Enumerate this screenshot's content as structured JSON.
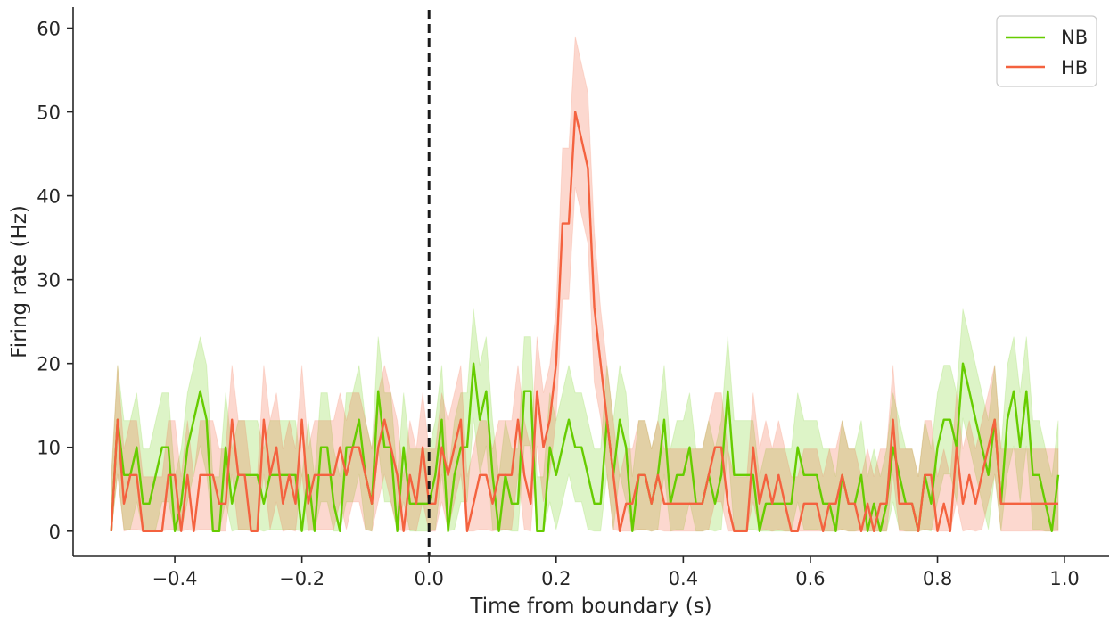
{
  "chart_data": {
    "type": "line",
    "title": "",
    "xlabel": "Time from boundary (s)",
    "ylabel": "Firing rate (Hz)",
    "xlim": [
      -0.56,
      1.07
    ],
    "ylim": [
      -3,
      62.5
    ],
    "x_ticks": [
      -0.4,
      -0.2,
      0.0,
      0.2,
      0.4,
      0.6,
      0.8,
      1.0
    ],
    "x_tick_labels": [
      "−0.4",
      "−0.2",
      "0.0",
      "0.2",
      "0.4",
      "0.6",
      "0.8",
      "1.0"
    ],
    "y_ticks": [
      0,
      10,
      20,
      30,
      40,
      50,
      60
    ],
    "y_tick_labels": [
      "0",
      "10",
      "20",
      "30",
      "40",
      "50",
      "60"
    ],
    "grid": false,
    "legend_position": "top-right",
    "reference_line": {
      "x": 0.0,
      "style": "dashed",
      "color": "#1a1a1a"
    },
    "series": [
      {
        "name": "NB",
        "color": "#66cc00",
        "band_opacity": 0.22,
        "knots": [
          [
            -0.5,
            0
          ],
          [
            -0.49,
            13.3
          ],
          [
            -0.48,
            6.7
          ],
          [
            -0.47,
            6.7
          ],
          [
            -0.46,
            10
          ],
          [
            -0.45,
            3.3
          ],
          [
            -0.44,
            3.3
          ],
          [
            -0.43,
            6.7
          ],
          [
            -0.42,
            10
          ],
          [
            -0.41,
            10
          ],
          [
            -0.4,
            0
          ],
          [
            -0.39,
            3.3
          ],
          [
            -0.38,
            10
          ],
          [
            -0.37,
            13.3
          ],
          [
            -0.36,
            16.7
          ],
          [
            -0.35,
            13.3
          ],
          [
            -0.34,
            0
          ],
          [
            -0.33,
            0
          ],
          [
            -0.32,
            10
          ],
          [
            -0.31,
            3.3
          ],
          [
            -0.3,
            6.7
          ],
          [
            -0.29,
            6.7
          ],
          [
            -0.28,
            6.7
          ],
          [
            -0.27,
            6.7
          ],
          [
            -0.26,
            3.3
          ],
          [
            -0.25,
            6.7
          ],
          [
            -0.24,
            6.7
          ],
          [
            -0.23,
            6.7
          ],
          [
            -0.22,
            6.7
          ],
          [
            -0.21,
            6.7
          ],
          [
            -0.2,
            0
          ],
          [
            -0.19,
            6.7
          ],
          [
            -0.18,
            0
          ],
          [
            -0.17,
            10
          ],
          [
            -0.16,
            10
          ],
          [
            -0.15,
            3.3
          ],
          [
            -0.14,
            0
          ],
          [
            -0.13,
            10
          ],
          [
            -0.12,
            10
          ],
          [
            -0.11,
            13.3
          ],
          [
            -0.1,
            6.7
          ],
          [
            -0.09,
            3.3
          ],
          [
            -0.08,
            16.7
          ],
          [
            -0.07,
            10
          ],
          [
            -0.06,
            10
          ],
          [
            -0.05,
            0
          ],
          [
            -0.04,
            10
          ],
          [
            -0.03,
            3.3
          ],
          [
            -0.02,
            3.3
          ],
          [
            -0.01,
            3.3
          ],
          [
            0.0,
            3.3
          ],
          [
            0.01,
            6.7
          ],
          [
            0.02,
            13.3
          ],
          [
            0.03,
            0
          ],
          [
            0.04,
            6.7
          ],
          [
            0.05,
            10
          ],
          [
            0.06,
            10
          ],
          [
            0.07,
            20
          ],
          [
            0.08,
            13.3
          ],
          [
            0.09,
            16.7
          ],
          [
            0.1,
            6.7
          ],
          [
            0.11,
            0
          ],
          [
            0.12,
            6.7
          ],
          [
            0.13,
            3.3
          ],
          [
            0.14,
            3.3
          ],
          [
            0.15,
            16.7
          ],
          [
            0.16,
            16.7
          ],
          [
            0.17,
            0
          ],
          [
            0.18,
            0
          ],
          [
            0.19,
            10
          ],
          [
            0.2,
            6.7
          ],
          [
            0.21,
            10
          ],
          [
            0.22,
            13.3
          ],
          [
            0.23,
            10
          ],
          [
            0.24,
            10
          ],
          [
            0.25,
            6.7
          ],
          [
            0.26,
            3.3
          ],
          [
            0.27,
            3.3
          ],
          [
            0.28,
            13.3
          ],
          [
            0.29,
            6.7
          ],
          [
            0.3,
            13.3
          ],
          [
            0.31,
            10
          ],
          [
            0.32,
            0
          ],
          [
            0.33,
            6.7
          ],
          [
            0.34,
            6.7
          ],
          [
            0.35,
            3.3
          ],
          [
            0.36,
            6.7
          ],
          [
            0.37,
            13.3
          ],
          [
            0.38,
            3.3
          ],
          [
            0.39,
            6.7
          ],
          [
            0.4,
            6.7
          ],
          [
            0.41,
            10
          ],
          [
            0.42,
            3.3
          ],
          [
            0.43,
            3.3
          ],
          [
            0.44,
            6.7
          ],
          [
            0.45,
            3.3
          ],
          [
            0.46,
            6.7
          ],
          [
            0.47,
            16.7
          ],
          [
            0.48,
            6.7
          ],
          [
            0.49,
            6.7
          ],
          [
            0.5,
            6.7
          ],
          [
            0.51,
            6.7
          ],
          [
            0.52,
            0
          ],
          [
            0.53,
            3.3
          ],
          [
            0.54,
            3.3
          ],
          [
            0.55,
            3.3
          ],
          [
            0.56,
            3.3
          ],
          [
            0.57,
            3.3
          ],
          [
            0.58,
            10
          ],
          [
            0.59,
            6.7
          ],
          [
            0.6,
            6.7
          ],
          [
            0.61,
            6.7
          ],
          [
            0.62,
            3.3
          ],
          [
            0.63,
            3.3
          ],
          [
            0.64,
            0
          ],
          [
            0.65,
            6.7
          ],
          [
            0.66,
            3.3
          ],
          [
            0.67,
            3.3
          ],
          [
            0.68,
            6.7
          ],
          [
            0.69,
            0
          ],
          [
            0.7,
            3.3
          ],
          [
            0.71,
            0
          ],
          [
            0.72,
            3.3
          ],
          [
            0.73,
            10
          ],
          [
            0.74,
            6.7
          ],
          [
            0.75,
            3.3
          ],
          [
            0.76,
            3.3
          ],
          [
            0.77,
            0
          ],
          [
            0.78,
            6.7
          ],
          [
            0.79,
            3.3
          ],
          [
            0.8,
            10
          ],
          [
            0.81,
            13.3
          ],
          [
            0.82,
            13.3
          ],
          [
            0.83,
            10
          ],
          [
            0.84,
            20
          ],
          [
            0.85,
            16.7
          ],
          [
            0.86,
            13.3
          ],
          [
            0.87,
            10
          ],
          [
            0.88,
            6.7
          ],
          [
            0.89,
            13.3
          ],
          [
            0.9,
            3.3
          ],
          [
            0.91,
            13.3
          ],
          [
            0.92,
            16.7
          ],
          [
            0.93,
            10
          ],
          [
            0.94,
            16.7
          ],
          [
            0.95,
            6.7
          ],
          [
            0.96,
            6.7
          ],
          [
            0.97,
            3.3
          ],
          [
            0.98,
            0
          ],
          [
            0.99,
            6.7
          ]
        ]
      },
      {
        "name": "HB",
        "color": "#f4623f",
        "band_opacity": 0.25,
        "knots": [
          [
            -0.5,
            0
          ],
          [
            -0.49,
            13.3
          ],
          [
            -0.48,
            3.3
          ],
          [
            -0.47,
            6.7
          ],
          [
            -0.46,
            6.7
          ],
          [
            -0.45,
            0
          ],
          [
            -0.44,
            0
          ],
          [
            -0.43,
            0
          ],
          [
            -0.42,
            0
          ],
          [
            -0.41,
            6.7
          ],
          [
            -0.4,
            6.7
          ],
          [
            -0.39,
            0
          ],
          [
            -0.38,
            6.7
          ],
          [
            -0.37,
            0
          ],
          [
            -0.36,
            6.7
          ],
          [
            -0.35,
            6.7
          ],
          [
            -0.34,
            6.7
          ],
          [
            -0.33,
            3.3
          ],
          [
            -0.32,
            3.3
          ],
          [
            -0.31,
            13.3
          ],
          [
            -0.3,
            6.7
          ],
          [
            -0.29,
            6.7
          ],
          [
            -0.28,
            0
          ],
          [
            -0.27,
            0
          ],
          [
            -0.26,
            13.3
          ],
          [
            -0.25,
            6.7
          ],
          [
            -0.24,
            10
          ],
          [
            -0.23,
            3.3
          ],
          [
            -0.22,
            6.7
          ],
          [
            -0.21,
            3.3
          ],
          [
            -0.2,
            13.3
          ],
          [
            -0.19,
            3.3
          ],
          [
            -0.18,
            6.7
          ],
          [
            -0.17,
            6.7
          ],
          [
            -0.16,
            6.7
          ],
          [
            -0.15,
            6.7
          ],
          [
            -0.14,
            10
          ],
          [
            -0.13,
            6.7
          ],
          [
            -0.12,
            10
          ],
          [
            -0.11,
            10
          ],
          [
            -0.1,
            6.7
          ],
          [
            -0.09,
            3.3
          ],
          [
            -0.08,
            10
          ],
          [
            -0.07,
            13.3
          ],
          [
            -0.06,
            10
          ],
          [
            -0.05,
            6.7
          ],
          [
            -0.04,
            0
          ],
          [
            -0.03,
            6.7
          ],
          [
            -0.02,
            3.3
          ],
          [
            -0.01,
            10
          ],
          [
            0.0,
            3.3
          ],
          [
            0.01,
            3.3
          ],
          [
            0.02,
            10
          ],
          [
            0.03,
            6.7
          ],
          [
            0.04,
            10
          ],
          [
            0.05,
            13.3
          ],
          [
            0.06,
            0
          ],
          [
            0.07,
            3.3
          ],
          [
            0.08,
            6.7
          ],
          [
            0.09,
            6.7
          ],
          [
            0.1,
            3.3
          ],
          [
            0.11,
            6.7
          ],
          [
            0.12,
            6.7
          ],
          [
            0.13,
            6.7
          ],
          [
            0.14,
            13.3
          ],
          [
            0.15,
            6.7
          ],
          [
            0.16,
            3.3
          ],
          [
            0.17,
            16.7
          ],
          [
            0.18,
            10
          ],
          [
            0.19,
            13.3
          ],
          [
            0.2,
            20
          ],
          [
            0.21,
            36.7
          ],
          [
            0.22,
            36.7
          ],
          [
            0.23,
            50
          ],
          [
            0.24,
            46.7
          ],
          [
            0.25,
            43.3
          ],
          [
            0.26,
            26.7
          ],
          [
            0.27,
            20
          ],
          [
            0.28,
            13.3
          ],
          [
            0.29,
            6.7
          ],
          [
            0.3,
            0
          ],
          [
            0.31,
            3.3
          ],
          [
            0.32,
            3.3
          ],
          [
            0.33,
            6.7
          ],
          [
            0.34,
            6.7
          ],
          [
            0.35,
            3.3
          ],
          [
            0.36,
            6.7
          ],
          [
            0.37,
            3.3
          ],
          [
            0.38,
            3.3
          ],
          [
            0.39,
            3.3
          ],
          [
            0.4,
            3.3
          ],
          [
            0.41,
            3.3
          ],
          [
            0.42,
            3.3
          ],
          [
            0.43,
            3.3
          ],
          [
            0.44,
            6.7
          ],
          [
            0.45,
            10
          ],
          [
            0.46,
            10
          ],
          [
            0.47,
            3.3
          ],
          [
            0.48,
            0
          ],
          [
            0.49,
            0
          ],
          [
            0.5,
            0
          ],
          [
            0.51,
            10
          ],
          [
            0.52,
            3.3
          ],
          [
            0.53,
            6.7
          ],
          [
            0.54,
            3.3
          ],
          [
            0.55,
            6.7
          ],
          [
            0.56,
            3.3
          ],
          [
            0.57,
            0
          ],
          [
            0.58,
            0
          ],
          [
            0.59,
            3.3
          ],
          [
            0.6,
            3.3
          ],
          [
            0.61,
            3.3
          ],
          [
            0.62,
            0
          ],
          [
            0.63,
            3.3
          ],
          [
            0.64,
            3.3
          ],
          [
            0.65,
            6.7
          ],
          [
            0.66,
            3.3
          ],
          [
            0.67,
            3.3
          ],
          [
            0.68,
            0
          ],
          [
            0.69,
            3.3
          ],
          [
            0.7,
            0
          ],
          [
            0.71,
            3.3
          ],
          [
            0.72,
            3.3
          ],
          [
            0.73,
            13.3
          ],
          [
            0.74,
            3.3
          ],
          [
            0.75,
            3.3
          ],
          [
            0.76,
            3.3
          ],
          [
            0.77,
            0
          ],
          [
            0.78,
            6.7
          ],
          [
            0.79,
            6.7
          ],
          [
            0.8,
            0
          ],
          [
            0.81,
            3.3
          ],
          [
            0.82,
            0
          ],
          [
            0.83,
            10
          ],
          [
            0.84,
            3.3
          ],
          [
            0.85,
            6.7
          ],
          [
            0.86,
            3.3
          ],
          [
            0.87,
            6.7
          ],
          [
            0.88,
            10
          ],
          [
            0.89,
            13.3
          ],
          [
            0.9,
            3.3
          ],
          [
            0.91,
            3.3
          ],
          [
            0.92,
            3.3
          ],
          [
            0.93,
            3.3
          ],
          [
            0.94,
            3.3
          ],
          [
            0.95,
            3.3
          ],
          [
            0.96,
            3.3
          ],
          [
            0.97,
            3.3
          ],
          [
            0.98,
            3.3
          ],
          [
            0.99,
            3.3
          ]
        ]
      }
    ]
  }
}
